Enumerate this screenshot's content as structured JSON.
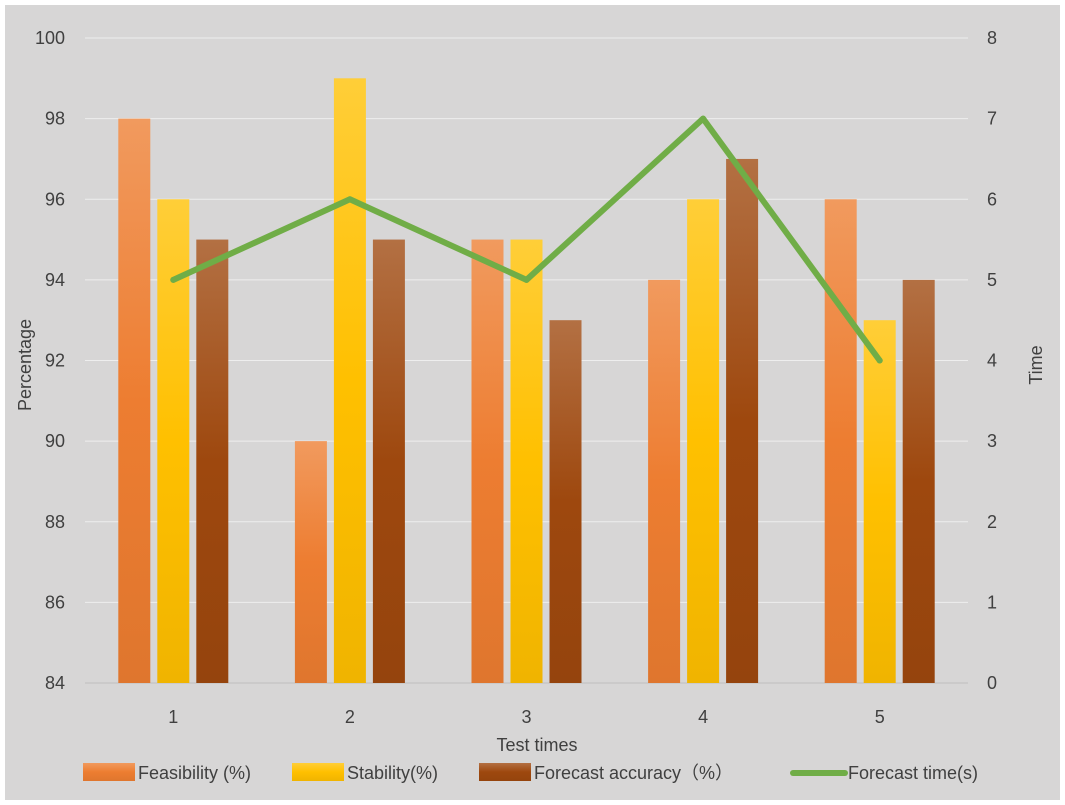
{
  "chart_data": {
    "type": "bar",
    "categories": [
      "1",
      "2",
      "3",
      "4",
      "5"
    ],
    "series": [
      {
        "name": "Feasibility (%)",
        "values": [
          98,
          90,
          95,
          94,
          96
        ],
        "color": "#ed7d31",
        "axis": "left",
        "kind": "bar"
      },
      {
        "name": "Stability(%)",
        "values": [
          96,
          99,
          95,
          96,
          93
        ],
        "color": "#ffc000",
        "axis": "left",
        "kind": "bar"
      },
      {
        "name": "Forecast accuracy（%）",
        "values": [
          95,
          95,
          93,
          97,
          94
        ],
        "color": "#9e480e",
        "axis": "left",
        "kind": "bar"
      },
      {
        "name": "Forecast time(s)",
        "values": [
          5,
          6,
          5,
          7,
          4
        ],
        "color": "#70ad47",
        "axis": "right",
        "kind": "line"
      }
    ],
    "xlabel": "Test times",
    "ylabel": "Percentage",
    "y2label": "Time",
    "ylim": [
      84,
      100
    ],
    "yticks": [
      "84",
      "86",
      "88",
      "90",
      "92",
      "94",
      "96",
      "98",
      "100"
    ],
    "y2lim": [
      0,
      8
    ],
    "y2ticks": [
      "0",
      "1",
      "2",
      "3",
      "4",
      "5",
      "6",
      "7",
      "8"
    ],
    "grid": true,
    "legend_position": "bottom"
  }
}
